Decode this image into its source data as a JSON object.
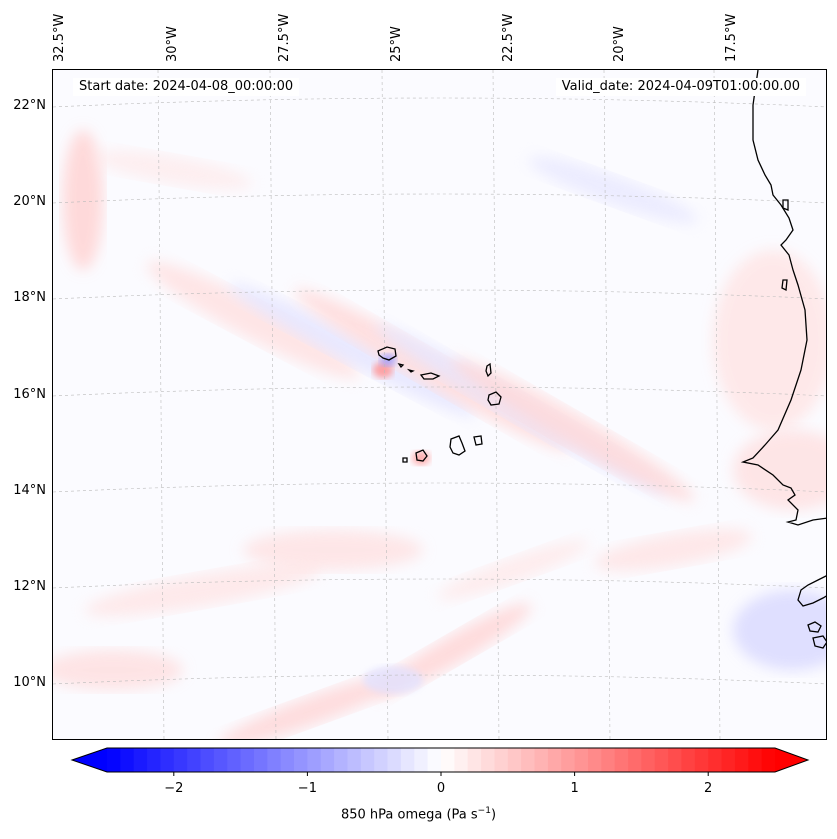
{
  "map": {
    "start_date": "Start date: 2024-04-08_00:00:00",
    "valid_date": "Valid_date: 2024-04-09T01:00:00.00",
    "lon_labels": [
      "32.5°W",
      "30°W",
      "27.5°W",
      "25°W",
      "22.5°W",
      "20°W",
      "17.5°W"
    ],
    "lat_labels": [
      "22°N",
      "20°N",
      "18°N",
      "16°N",
      "14°N",
      "12°N",
      "10°N"
    ],
    "lon_range": [
      -33.0,
      -16.0
    ],
    "lat_range": [
      8.9,
      22.8
    ],
    "gridlines": true
  },
  "colorbar": {
    "label_main": "850 hPa omega (Pa s",
    "label_exp": "−1",
    "label_close": ")",
    "ticks": [
      "−2",
      "−1",
      "0",
      "1",
      "2"
    ],
    "tick_values": [
      -2,
      -1,
      0,
      1,
      2
    ],
    "range": [
      -2.5,
      2.5
    ],
    "extend": "both",
    "colormap": "bwr",
    "color_low": "#0000ff",
    "color_mid": "#ffffff",
    "color_high": "#ff0000"
  }
}
